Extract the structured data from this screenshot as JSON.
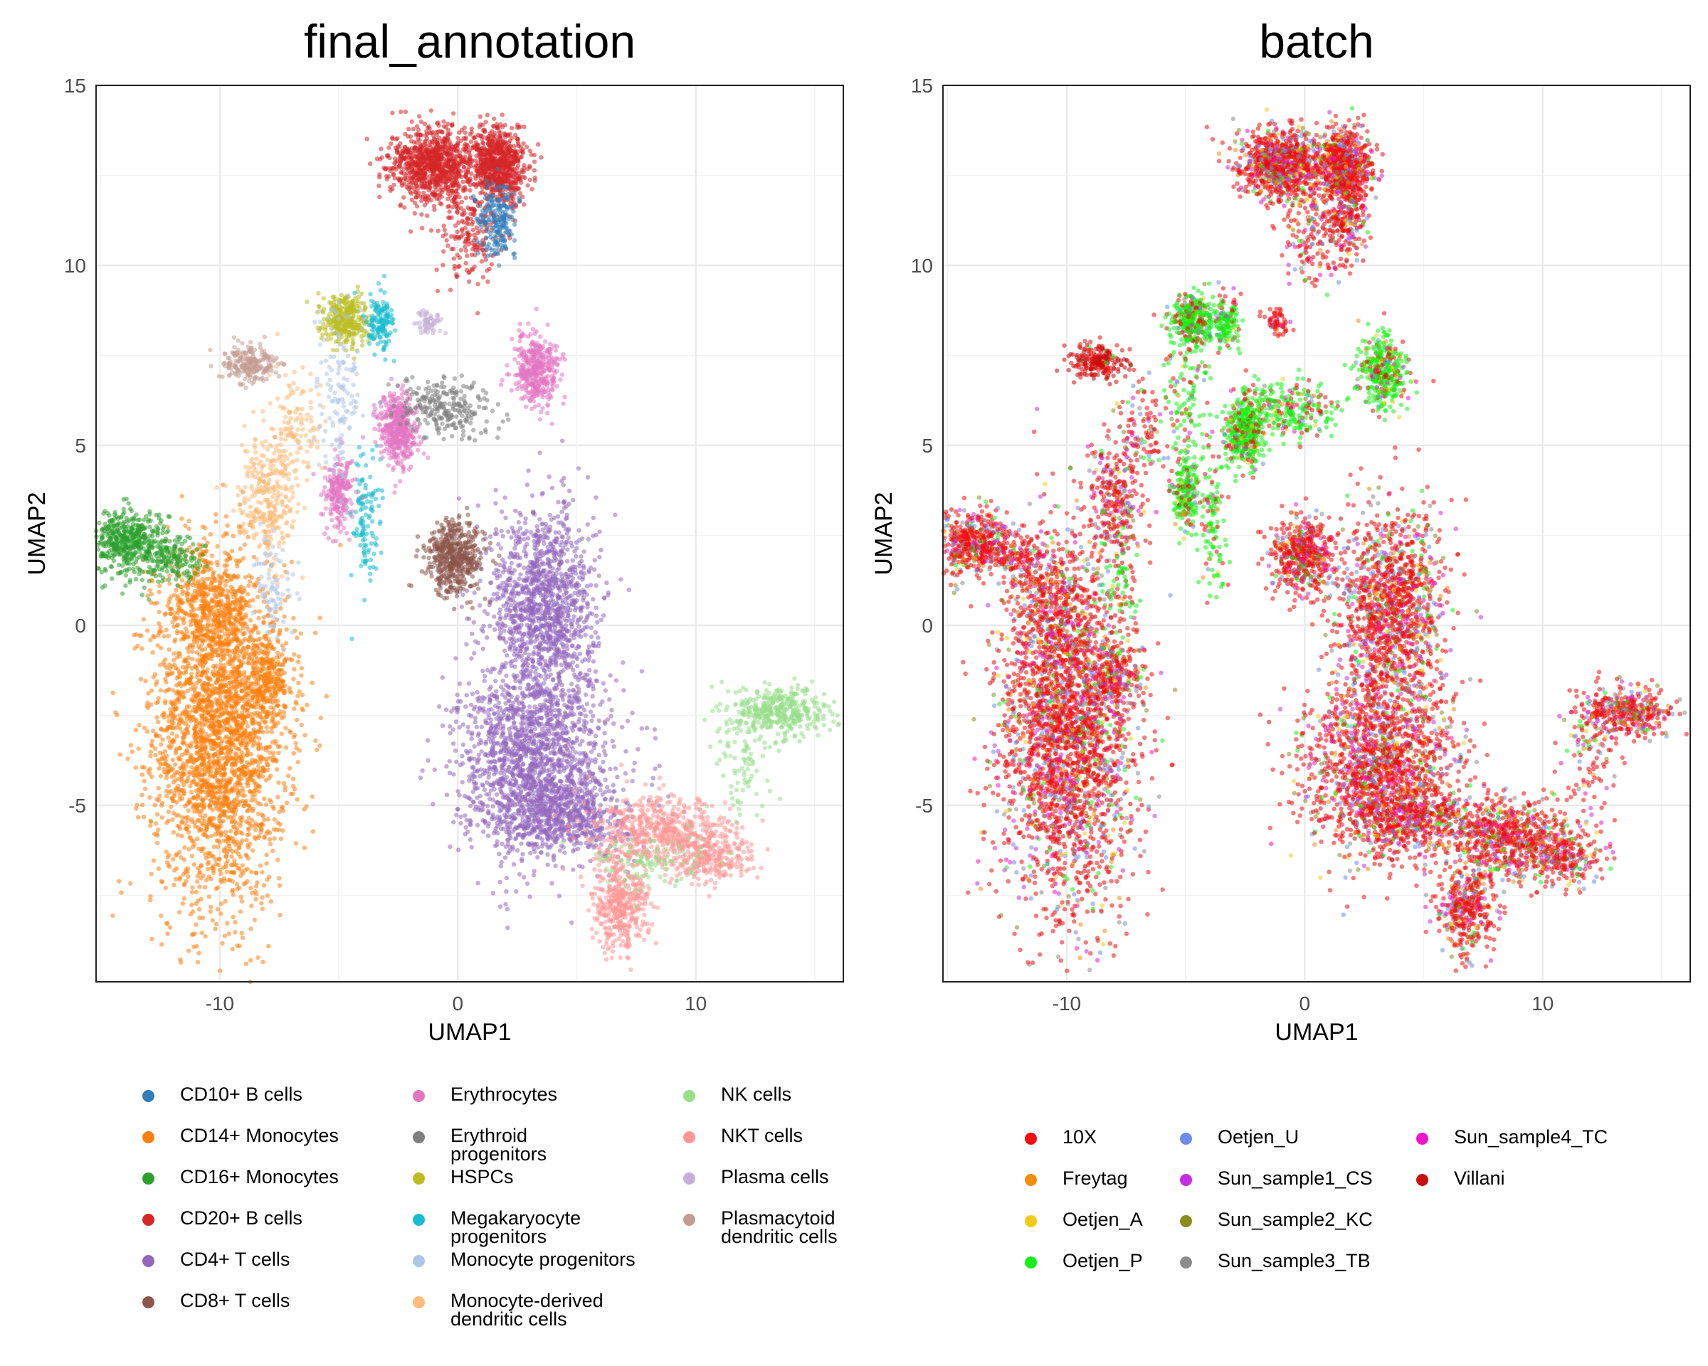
{
  "chart_data": [
    {
      "type": "scatter",
      "title": "final_annotation",
      "xlabel": "UMAP1",
      "ylabel": "UMAP2",
      "xlim": [
        -15.2,
        16.2
      ],
      "ylim": [
        -9.9,
        15.0
      ],
      "xticks": [
        -10,
        0,
        10
      ],
      "yticks": [
        15,
        10,
        5,
        0,
        -5
      ],
      "xtick_labels": [
        "-10",
        "0",
        "10"
      ],
      "ytick_labels": [
        "15",
        "10",
        "5",
        "0",
        "-5"
      ],
      "grid": true,
      "legend_position": "bottom",
      "series": [
        {
          "name": "CD10+ B cells",
          "color": "#2F7EBC"
        },
        {
          "name": "CD14+ Monocytes",
          "color": "#FF7F0E"
        },
        {
          "name": "CD16+ Monocytes",
          "color": "#2CA02C"
        },
        {
          "name": "CD20+ B cells",
          "color": "#D62728"
        },
        {
          "name": "CD4+ T cells",
          "color": "#9467BD"
        },
        {
          "name": "CD8+ T cells",
          "color": "#8C564B"
        },
        {
          "name": "Erythrocytes",
          "color": "#E377C2"
        },
        {
          "name": "Erythroid\nprogenitors",
          "color": "#7F7F7F"
        },
        {
          "name": "HSPCs",
          "color": "#BCBD22"
        },
        {
          "name": "Megakaryocyte\nprogenitors",
          "color": "#17BECF"
        },
        {
          "name": "Monocyte progenitors",
          "color": "#AEC7E8"
        },
        {
          "name": "Monocyte-derived\ndendritic cells",
          "color": "#FFBB78"
        },
        {
          "name": "NK cells",
          "color": "#98DF8A"
        },
        {
          "name": "NKT cells",
          "color": "#FF9896"
        },
        {
          "name": "Plasma cells",
          "color": "#C5B0D5"
        },
        {
          "name": "Plasmacytoid\ndendritic cells",
          "color": "#C49C94"
        }
      ],
      "clusters": [
        {
          "series": "CD14+ Monocytes",
          "x": -10.0,
          "y": -3.0,
          "sx": 1.4,
          "sy": 2.4,
          "n": 2600
        },
        {
          "series": "CD14+ Monocytes",
          "x": -8.0,
          "y": -1.5,
          "sx": 0.6,
          "sy": 0.6,
          "n": 250
        },
        {
          "series": "CD14+ Monocytes",
          "x": -10.5,
          "y": 0.5,
          "sx": 0.9,
          "sy": 0.8,
          "n": 400
        },
        {
          "series": "CD16+ Monocytes",
          "x": -13.8,
          "y": 2.3,
          "sx": 0.8,
          "sy": 0.45,
          "n": 500
        },
        {
          "series": "CD16+ Monocytes",
          "x": -11.8,
          "y": 1.8,
          "sx": 0.6,
          "sy": 0.3,
          "n": 120
        },
        {
          "series": "CD4+ T cells",
          "x": 3.6,
          "y": 0.5,
          "sx": 1.1,
          "sy": 1.4,
          "n": 1300
        },
        {
          "series": "CD4+ T cells",
          "x": 3.2,
          "y": -3.8,
          "sx": 1.6,
          "sy": 1.3,
          "n": 1600
        },
        {
          "series": "CD4+ T cells",
          "x": 4.5,
          "y": -5.3,
          "sx": 1.4,
          "sy": 0.5,
          "n": 500
        },
        {
          "series": "CD8+ T cells",
          "x": -0.1,
          "y": 1.9,
          "sx": 0.6,
          "sy": 0.5,
          "n": 500
        },
        {
          "series": "NKT cells",
          "x": 6.8,
          "y": -7.8,
          "sx": 0.6,
          "sy": 0.6,
          "n": 400
        },
        {
          "series": "NKT cells",
          "x": 8.5,
          "y": -5.8,
          "sx": 1.4,
          "sy": 0.5,
          "n": 600
        },
        {
          "series": "NKT cells",
          "x": 10.8,
          "y": -6.4,
          "sx": 0.8,
          "sy": 0.4,
          "n": 250
        },
        {
          "series": "NK cells",
          "x": 13.5,
          "y": -2.4,
          "sx": 1.0,
          "sy": 0.35,
          "n": 400
        },
        {
          "series": "NK cells",
          "x": 12.0,
          "y": -3.8,
          "sx": 0.6,
          "sy": 0.7,
          "n": 80
        },
        {
          "series": "NK cells",
          "x": 8.0,
          "y": -6.6,
          "sx": 1.2,
          "sy": 0.4,
          "n": 100
        },
        {
          "series": "CD20+ B cells",
          "x": -1.0,
          "y": 12.8,
          "sx": 0.9,
          "sy": 0.5,
          "n": 900
        },
        {
          "series": "CD20+ B cells",
          "x": 1.7,
          "y": 12.8,
          "sx": 0.6,
          "sy": 0.5,
          "n": 700
        },
        {
          "series": "CD20+ B cells",
          "x": 0.5,
          "y": 11.0,
          "sx": 0.7,
          "sy": 0.8,
          "n": 200
        },
        {
          "series": "CD10+ B cells",
          "x": 1.7,
          "y": 11.3,
          "sx": 0.4,
          "sy": 0.5,
          "n": 200
        },
        {
          "series": "HSPCs",
          "x": -4.7,
          "y": 8.5,
          "sx": 0.45,
          "sy": 0.35,
          "n": 350
        },
        {
          "series": "Megakaryocyte\nprogenitors",
          "x": -3.3,
          "y": 8.4,
          "sx": 0.3,
          "sy": 0.4,
          "n": 150
        },
        {
          "series": "Megakaryocyte\nprogenitors",
          "x": -3.9,
          "y": 2.8,
          "sx": 0.3,
          "sy": 1.1,
          "n": 120
        },
        {
          "series": "Erythrocytes",
          "x": -2.5,
          "y": 5.4,
          "sx": 0.4,
          "sy": 0.5,
          "n": 450
        },
        {
          "series": "Erythrocytes",
          "x": -5.0,
          "y": 3.7,
          "sx": 0.3,
          "sy": 0.5,
          "n": 220
        },
        {
          "series": "Erythrocytes",
          "x": 3.3,
          "y": 7.1,
          "sx": 0.5,
          "sy": 0.5,
          "n": 400
        },
        {
          "series": "Erythroid\nprogenitors",
          "x": -0.5,
          "y": 6.0,
          "sx": 1.0,
          "sy": 0.4,
          "n": 250
        },
        {
          "series": "Plasma cells",
          "x": -1.2,
          "y": 8.4,
          "sx": 0.25,
          "sy": 0.2,
          "n": 60
        },
        {
          "series": "Plasmacytoid\ndendritic cells",
          "x": -8.7,
          "y": 7.3,
          "sx": 0.6,
          "sy": 0.25,
          "n": 220
        },
        {
          "series": "Monocyte-derived\ndendritic cells",
          "x": -8.0,
          "y": 3.5,
          "sx": 0.6,
          "sy": 0.8,
          "n": 300
        },
        {
          "series": "Monocyte-derived\ndendritic cells",
          "x": -6.8,
          "y": 5.5,
          "sx": 0.6,
          "sy": 0.8,
          "n": 120
        },
        {
          "series": "Monocyte progenitors",
          "x": -5.0,
          "y": 6.5,
          "sx": 0.4,
          "sy": 1.2,
          "n": 130
        },
        {
          "series": "Monocyte progenitors",
          "x": -7.8,
          "y": 1.0,
          "sx": 0.4,
          "sy": 0.8,
          "n": 80
        }
      ]
    },
    {
      "type": "scatter",
      "title": "batch",
      "xlabel": "UMAP1",
      "ylabel": "UMAP2",
      "xlim": [
        -15.2,
        16.2
      ],
      "ylim": [
        -9.9,
        15.0
      ],
      "xticks": [
        -10,
        0,
        10
      ],
      "yticks": [
        15,
        10,
        5,
        0,
        -5
      ],
      "xtick_labels": [
        "-10",
        "0",
        "10"
      ],
      "ytick_labels": [
        "15",
        "10",
        "5",
        "0",
        "-5"
      ],
      "grid": true,
      "legend_position": "bottom",
      "series": [
        {
          "name": "10X",
          "color": "#F20C0C"
        },
        {
          "name": "Freytag",
          "color": "#F28C0C"
        },
        {
          "name": "Oetjen_A",
          "color": "#F2CC14"
        },
        {
          "name": "Oetjen_P",
          "color": "#14F214"
        },
        {
          "name": "Oetjen_U",
          "color": "#6E8CEB"
        },
        {
          "name": "Sun_sample1_CS",
          "color": "#C82CE6"
        },
        {
          "name": "Sun_sample2_KC",
          "color": "#8C8C1E"
        },
        {
          "name": "Sun_sample3_TB",
          "color": "#8C8C8C"
        },
        {
          "name": "Sun_sample4_TC",
          "color": "#F014C8"
        },
        {
          "name": "Villani",
          "color": "#C80F0F"
        }
      ]
    }
  ]
}
